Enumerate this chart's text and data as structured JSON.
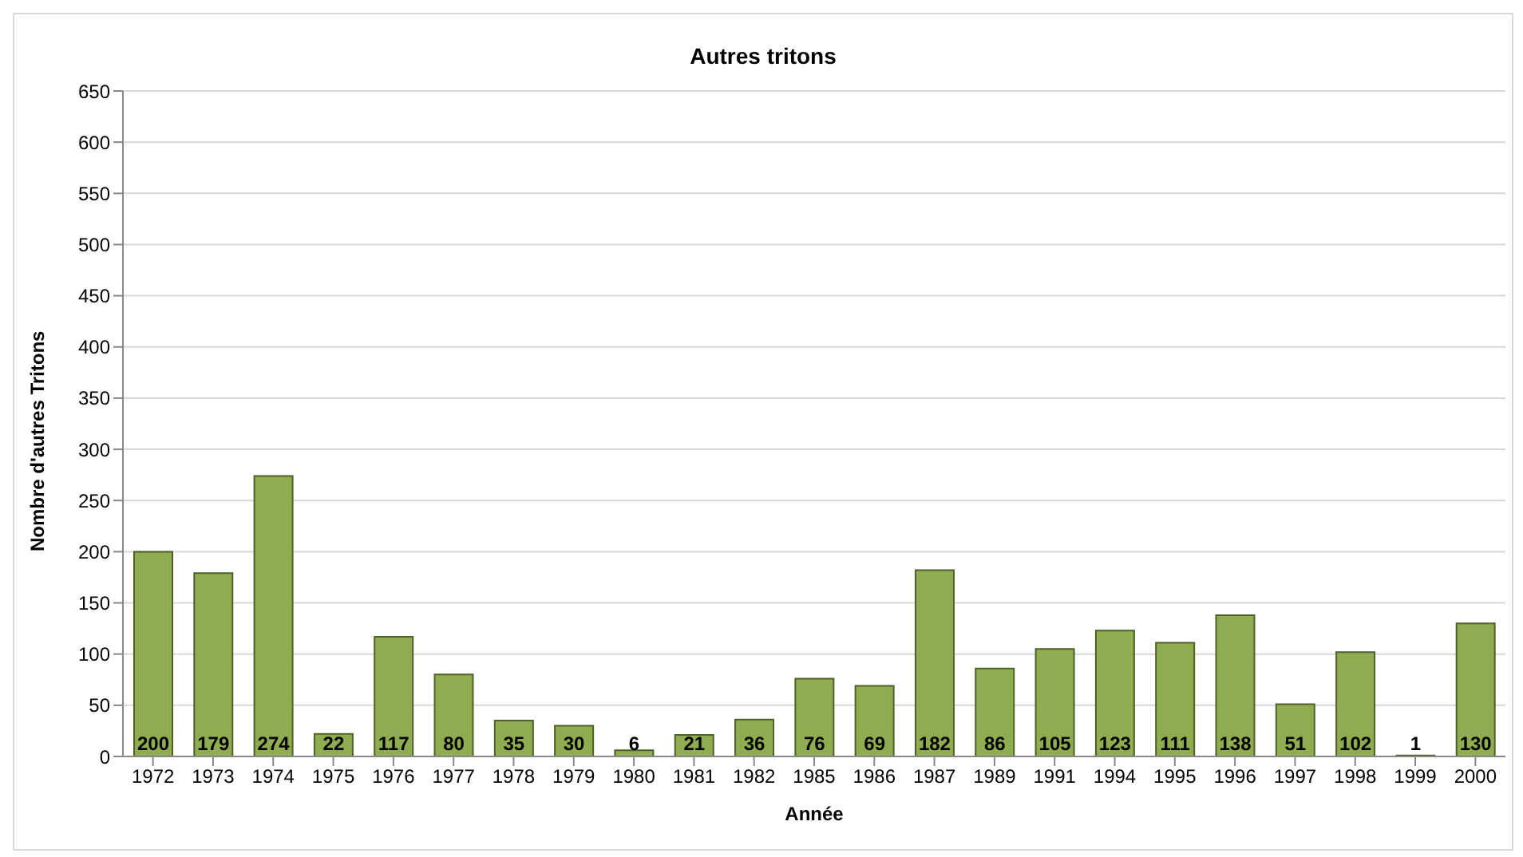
{
  "chart_data": {
    "type": "bar",
    "title": "Autres tritons",
    "xlabel": "Année",
    "ylabel": "Nombre d'autres Tritons",
    "categories": [
      "1972",
      "1973",
      "1974",
      "1975",
      "1976",
      "1977",
      "1978",
      "1979",
      "1980",
      "1981",
      "1982",
      "1985",
      "1986",
      "1987",
      "1989",
      "1991",
      "1994",
      "1995",
      "1996",
      "1997",
      "1998",
      "1999",
      "2000"
    ],
    "values": [
      200,
      179,
      274,
      22,
      117,
      80,
      35,
      30,
      6,
      21,
      36,
      76,
      69,
      182,
      86,
      105,
      123,
      111,
      138,
      51,
      102,
      1,
      130
    ],
    "color": "#8fac50",
    "ylim": [
      0,
      650
    ],
    "yticks": [
      0,
      50,
      100,
      150,
      200,
      250,
      300,
      350,
      400,
      450,
      500,
      550,
      600,
      650
    ],
    "grid": "y",
    "data_labels": true
  }
}
